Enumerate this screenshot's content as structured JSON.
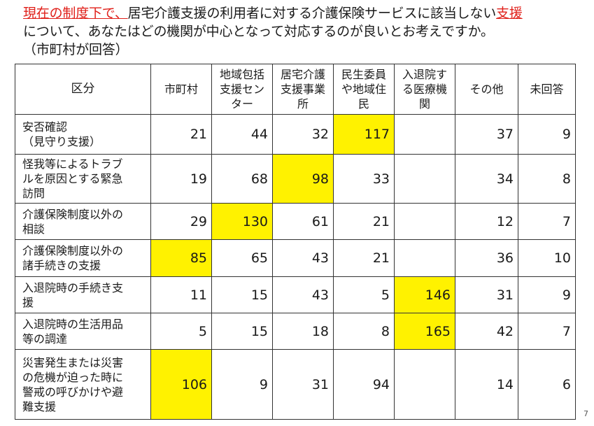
{
  "question": {
    "highlight_prefix": "現在の制度下で、",
    "text_middle": "居宅介護支援の利用者に対する介護保険サービスに該当しない",
    "highlight_suffix": "支援",
    "line2": "について、あなたはどの機関が中心となって対応するのが良いとお考えですか。",
    "line3": "（市町村が回答）",
    "highlight_color": "#e0201a"
  },
  "table": {
    "headers": [
      "区分",
      "市町村",
      "地域包括\n支援セン\nター",
      "居宅介護\n支援事業\n所",
      "民生委員\nや地域住\n民",
      "入退院す\nる医療機\n関",
      "その他",
      "未回答"
    ],
    "highlight_color": "#fff200",
    "rows": [
      {
        "label": "安否確認\n（見守り支援）",
        "values": [
          "21",
          "44",
          "32",
          "117",
          "",
          "37",
          "9"
        ],
        "highlight": 3
      },
      {
        "label": "怪我等によるトラブ\nルを原因とする緊急\n訪問",
        "values": [
          "19",
          "68",
          "98",
          "33",
          "",
          "34",
          "8"
        ],
        "highlight": 2
      },
      {
        "label": "介護保険制度以外の\n相談",
        "values": [
          "29",
          "130",
          "61",
          "21",
          "",
          "12",
          "7"
        ],
        "highlight": 1
      },
      {
        "label": "介護保険制度以外の\n諸手続きの支援",
        "values": [
          "85",
          "65",
          "43",
          "21",
          "",
          "36",
          "10"
        ],
        "highlight": 0
      },
      {
        "label": "入退院時の手続き支\n援",
        "values": [
          "11",
          "15",
          "43",
          "5",
          "146",
          "31",
          "9"
        ],
        "highlight": 4
      },
      {
        "label": "入退院時の生活用品\n等の調達",
        "values": [
          "5",
          "15",
          "18",
          "8",
          "165",
          "42",
          "7"
        ],
        "highlight": 4
      },
      {
        "label": "災害発生または災害\nの危機が迫った時に\n警戒の呼びかけや避\n難支援",
        "values": [
          "106",
          "9",
          "31",
          "94",
          "",
          "14",
          "6"
        ],
        "highlight": 0
      }
    ]
  },
  "page_number": "7"
}
